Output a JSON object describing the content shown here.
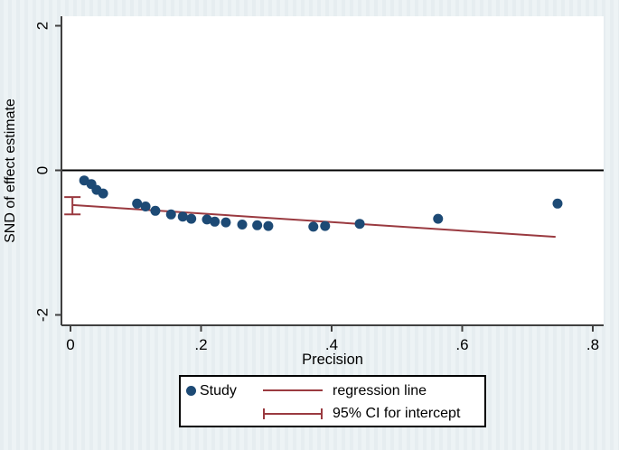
{
  "figure": {
    "type": "stata-egger-funnel-regression-plot"
  },
  "colors": {
    "background": "#e9eef2",
    "plot_background": "#ffffff",
    "marker": "#1d4a75",
    "line": "#9a3a40",
    "axis": "#404040",
    "zero_line": "#000000"
  },
  "legend": {
    "study_label": "Study",
    "regression_label": "regression line",
    "ci_label": "95% CI for intercept"
  },
  "chart_data": {
    "type": "scatter",
    "title": "",
    "xlabel": "Precision",
    "ylabel": "SND of effect estimate",
    "xlim": [
      -0.014,
      0.817
    ],
    "ylim": [
      -2.14,
      2.13
    ],
    "x_ticks": [
      0,
      0.2,
      0.4,
      0.6,
      0.8
    ],
    "x_tick_labels": [
      "0",
      ".2",
      ".4",
      ".6",
      ".8"
    ],
    "y_ticks": [
      2,
      0,
      -2
    ],
    "y_tick_labels": [
      "2",
      "0",
      "-2"
    ],
    "grid": false,
    "legend_position": "bottom-center",
    "zero_reference_line_y": 0,
    "series": [
      {
        "name": "Study",
        "type": "scatter",
        "marker": "circle",
        "points": [
          [
            0.021,
            -0.14
          ],
          [
            0.032,
            -0.19
          ],
          [
            0.04,
            -0.27
          ],
          [
            0.05,
            -0.32
          ],
          [
            0.102,
            -0.46
          ],
          [
            0.115,
            -0.5
          ],
          [
            0.13,
            -0.56
          ],
          [
            0.154,
            -0.61
          ],
          [
            0.172,
            -0.64
          ],
          [
            0.185,
            -0.67
          ],
          [
            0.209,
            -0.68
          ],
          [
            0.221,
            -0.71
          ],
          [
            0.238,
            -0.72
          ],
          [
            0.263,
            -0.75
          ],
          [
            0.286,
            -0.76
          ],
          [
            0.303,
            -0.77
          ],
          [
            0.372,
            -0.78
          ],
          [
            0.39,
            -0.77
          ],
          [
            0.443,
            -0.74
          ],
          [
            0.563,
            -0.67
          ],
          [
            0.746,
            -0.46
          ]
        ]
      },
      {
        "name": "regression line",
        "type": "line",
        "points": [
          [
            0.003,
            -0.48
          ],
          [
            0.743,
            -0.92
          ]
        ]
      },
      {
        "name": "95% CI for intercept",
        "type": "errorbar",
        "x": 0.003,
        "y_low": -0.61,
        "y_high": -0.37
      }
    ]
  }
}
